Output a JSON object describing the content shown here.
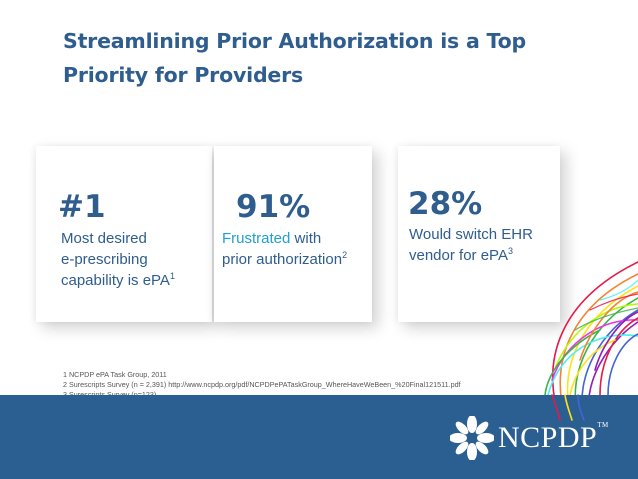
{
  "slide": {
    "title_line1": "Streamlining Prior Authorization is a Top",
    "title_line2": "Priority for Providers"
  },
  "stats": [
    {
      "value": "#1",
      "line1": "Most desired",
      "line2": "e-prescribing",
      "line3_text": "capability is ePA",
      "sup": "1"
    },
    {
      "value": "91%",
      "line1_highlight": "Frustrated",
      "line1_rest": " with",
      "line2_text": "prior authorization",
      "sup": "2"
    },
    {
      "value": "28%",
      "line1": "Would switch EHR",
      "line2_text": "vendor for ePA",
      "sup": "3"
    }
  ],
  "footnotes": [
    "1 NCPDP ePA Task Group, 2011",
    "2 Surescripts Survey (n = 2,391)  http://www.ncpdp.org/pdf/NCPDPePATaskGroup_WhereHaveWeBeen_%20Final121511.pdf",
    "3 Surescripts Survey (n=123)"
  ],
  "logo": {
    "text": "NCPDP",
    "tm": "TM"
  },
  "colors": {
    "title": "#2e5d8e",
    "highlight": "#1fa0d2",
    "footer": "#2c5f91"
  }
}
